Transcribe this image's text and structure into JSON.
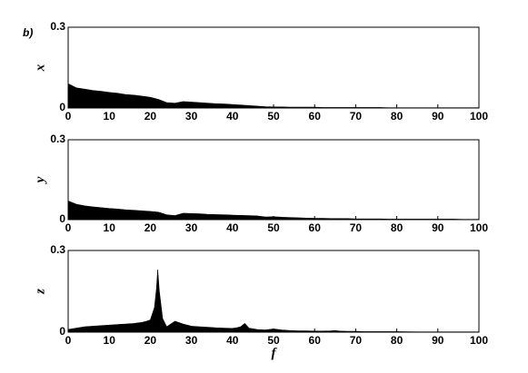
{
  "panel_label": "b)",
  "chart_data": [
    {
      "type": "area",
      "ylabel": "x",
      "color": "#000000",
      "x": [
        0,
        2,
        4,
        6,
        8,
        10,
        12,
        14,
        16,
        18,
        20,
        22,
        24,
        26,
        28,
        30,
        32,
        34,
        36,
        38,
        40,
        42,
        44,
        46,
        48,
        50,
        52,
        54,
        56,
        58,
        60,
        62,
        64,
        66,
        68,
        70,
        72,
        74,
        76,
        78,
        80,
        82,
        84,
        86,
        88,
        90,
        92,
        94,
        96,
        98,
        100
      ],
      "values": [
        0.09,
        0.075,
        0.07,
        0.065,
        0.062,
        0.058,
        0.055,
        0.05,
        0.048,
        0.044,
        0.04,
        0.032,
        0.02,
        0.018,
        0.024,
        0.022,
        0.02,
        0.018,
        0.016,
        0.015,
        0.013,
        0.011,
        0.009,
        0.007,
        0.005,
        0.004,
        0.004,
        0.003,
        0.003,
        0.003,
        0.003,
        0.002,
        0.002,
        0.002,
        0.002,
        0.002,
        0.002,
        0.002,
        0.002,
        0.001,
        0.001,
        0.001,
        0.001,
        0.001,
        0.001,
        0.001,
        0.001,
        0.001,
        0.001,
        0.001,
        0.001
      ],
      "xlim": [
        0,
        100
      ],
      "xticks": [
        0,
        10,
        20,
        30,
        40,
        50,
        60,
        70,
        80,
        90,
        100
      ],
      "ylim": [
        0,
        0.3
      ],
      "yticks": [
        0,
        0.3
      ]
    },
    {
      "type": "area",
      "ylabel": "y",
      "color": "#000000",
      "x": [
        0,
        2,
        4,
        6,
        8,
        10,
        12,
        14,
        16,
        18,
        20,
        22,
        24,
        26,
        28,
        30,
        32,
        34,
        36,
        38,
        40,
        42,
        44,
        46,
        48,
        50,
        52,
        54,
        56,
        58,
        60,
        62,
        64,
        66,
        68,
        70,
        72,
        74,
        76,
        78,
        80,
        82,
        84,
        86,
        88,
        90,
        92,
        94,
        96,
        98,
        100
      ],
      "values": [
        0.07,
        0.058,
        0.052,
        0.048,
        0.045,
        0.042,
        0.04,
        0.037,
        0.035,
        0.033,
        0.031,
        0.028,
        0.018,
        0.015,
        0.024,
        0.023,
        0.022,
        0.02,
        0.019,
        0.018,
        0.017,
        0.016,
        0.015,
        0.014,
        0.01,
        0.011,
        0.009,
        0.008,
        0.007,
        0.006,
        0.005,
        0.005,
        0.004,
        0.004,
        0.004,
        0.003,
        0.003,
        0.003,
        0.003,
        0.002,
        0.002,
        0.002,
        0.002,
        0.002,
        0.002,
        0.002,
        0.002,
        0.002,
        0.001,
        0.001,
        0.001
      ],
      "xlim": [
        0,
        100
      ],
      "xticks": [
        0,
        10,
        20,
        30,
        40,
        50,
        60,
        70,
        80,
        90,
        100
      ],
      "ylim": [
        0,
        0.3
      ],
      "yticks": [
        0,
        0.3
      ]
    },
    {
      "type": "area",
      "ylabel": "z",
      "xlabel": "f",
      "color": "#000000",
      "x": [
        0,
        2,
        4,
        6,
        8,
        10,
        12,
        14,
        16,
        18,
        19,
        20,
        21,
        21.5,
        21.8,
        22.2,
        23,
        24,
        26,
        28,
        30,
        32,
        34,
        36,
        38,
        40,
        41,
        42,
        43,
        44,
        46,
        48,
        50,
        52,
        54,
        56,
        58,
        60,
        62,
        64,
        65,
        66,
        68,
        70,
        72,
        74,
        76,
        78,
        80,
        85,
        90,
        95,
        100
      ],
      "values": [
        0.01,
        0.015,
        0.02,
        0.022,
        0.024,
        0.026,
        0.028,
        0.03,
        0.032,
        0.036,
        0.04,
        0.045,
        0.09,
        0.16,
        0.23,
        0.15,
        0.05,
        0.02,
        0.04,
        0.03,
        0.022,
        0.02,
        0.018,
        0.016,
        0.015,
        0.014,
        0.016,
        0.02,
        0.032,
        0.015,
        0.01,
        0.008,
        0.012,
        0.008,
        0.006,
        0.005,
        0.005,
        0.004,
        0.004,
        0.005,
        0.006,
        0.004,
        0.003,
        0.003,
        0.002,
        0.002,
        0.002,
        0.002,
        0.002,
        0.001,
        0.001,
        0.001,
        0.001
      ],
      "xlim": [
        0,
        100
      ],
      "xticks": [
        0,
        10,
        20,
        30,
        40,
        50,
        60,
        70,
        80,
        90,
        100
      ],
      "ylim": [
        0,
        0.3
      ],
      "yticks": [
        0,
        0.3
      ]
    }
  ]
}
